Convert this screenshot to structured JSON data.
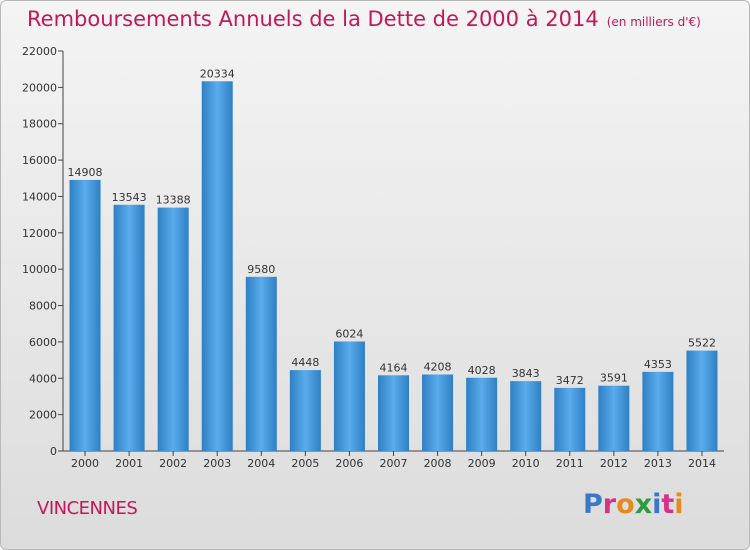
{
  "header": {
    "title": "Remboursements Annuels de la Dette de 2000 à 2014",
    "unit": "(en milliers d'€)"
  },
  "footer": {
    "city": "VINCENNES",
    "logo_letters": [
      "P",
      "r",
      "o",
      "x",
      "i",
      "t",
      "i"
    ],
    "logo_colors": [
      "#3a78c6",
      "#d6308a",
      "#e58a1f",
      "#2e9b3f",
      "#3a78c6",
      "#d6308a",
      "#e58a1f"
    ]
  },
  "chart_data": {
    "type": "bar",
    "title": "Remboursements Annuels de la Dette de 2000 à 2014",
    "categories": [
      "2000",
      "2001",
      "2002",
      "2003",
      "2004",
      "2005",
      "2006",
      "2007",
      "2008",
      "2009",
      "2010",
      "2011",
      "2012",
      "2013",
      "2014"
    ],
    "values": [
      14908,
      13543,
      13388,
      20334,
      9580,
      4448,
      6024,
      4164,
      4208,
      4028,
      3843,
      3472,
      3591,
      4353,
      5522
    ],
    "ylim": [
      0,
      22000
    ],
    "yticks": [
      0,
      2000,
      4000,
      6000,
      8000,
      10000,
      12000,
      14000,
      16000,
      18000,
      20000,
      22000
    ],
    "grid": false,
    "bar_color": "#3a8fd6"
  }
}
